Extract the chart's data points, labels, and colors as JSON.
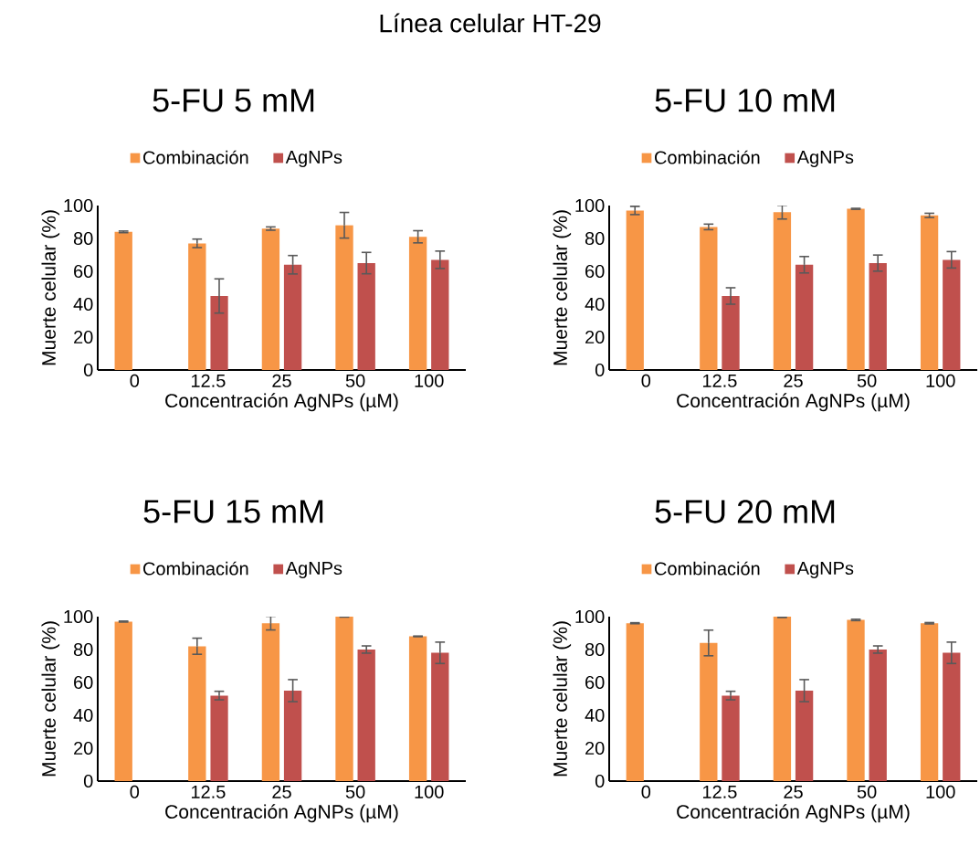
{
  "chart_data": [
    {
      "type": "bar",
      "title": "5-FU 5 mM",
      "annotations": [
        "Línea celular HT-29"
      ],
      "xlabel": "Concentración AgNPs (µM)",
      "ylabel": "Muerte celular (%)",
      "categories": [
        "0",
        "12.5",
        "25",
        "50",
        "100"
      ],
      "ylim": [
        0,
        100
      ],
      "yticks": [
        0,
        20,
        40,
        60,
        80,
        100
      ],
      "legend": "top",
      "grid": false,
      "series": [
        {
          "name": "Combinación",
          "color": "#f79646",
          "values": [
            84,
            77,
            86,
            88,
            81
          ],
          "errors": [
            0.5,
            2.6,
            1,
            7.8,
            3.7
          ]
        },
        {
          "name": "AgNPs",
          "color": "#c0504d",
          "values": [
            null,
            45,
            64,
            65,
            67
          ],
          "errors": [
            null,
            10.4,
            5.6,
            6.5,
            5.3
          ]
        }
      ]
    },
    {
      "type": "bar",
      "title": "5-FU 10 mM",
      "xlabel": "Concentración AgNPs (µM)",
      "ylabel": "Muerte celular (%)",
      "categories": [
        "0",
        "12.5",
        "25",
        "50",
        "100"
      ],
      "ylim": [
        0,
        100
      ],
      "yticks": [
        0,
        20,
        40,
        60,
        80,
        100
      ],
      "legend": "top",
      "grid": false,
      "series": [
        {
          "name": "Combinación",
          "color": "#f79646",
          "values": [
            97,
            87,
            96,
            98,
            94
          ],
          "errors": [
            2.5,
            1.7,
            4.2,
            0.3,
            1.3
          ]
        },
        {
          "name": "AgNPs",
          "color": "#c0504d",
          "values": [
            null,
            45,
            64,
            65,
            67
          ],
          "errors": [
            null,
            5,
            5,
            4.9,
            5
          ]
        }
      ]
    },
    {
      "type": "bar",
      "title": "5-FU 15 mM",
      "xlabel": "Concentración AgNPs (µM)",
      "ylabel": "Muerte celular (%)",
      "categories": [
        "0",
        "12.5",
        "25",
        "50",
        "100"
      ],
      "ylim": [
        0,
        100
      ],
      "yticks": [
        0,
        20,
        40,
        60,
        80,
        100
      ],
      "legend": "top",
      "grid": false,
      "series": [
        {
          "name": "Combinación",
          "color": "#f79646",
          "values": [
            97,
            82,
            96,
            100,
            88
          ],
          "errors": [
            0.3,
            4.9,
            4.1,
            0.2,
            0.2
          ]
        },
        {
          "name": "AgNPs",
          "color": "#c0504d",
          "values": [
            null,
            52,
            55,
            80,
            78
          ],
          "errors": [
            null,
            2.6,
            6.7,
            2.2,
            6.5
          ]
        }
      ]
    },
    {
      "type": "bar",
      "title": "5-FU 20 mM",
      "xlabel": "Concentración AgNPs (µM)",
      "ylabel": "Muerte celular (%)",
      "categories": [
        "0",
        "12.5",
        "25",
        "50",
        "100"
      ],
      "ylim": [
        0,
        100
      ],
      "yticks": [
        0,
        20,
        40,
        60,
        80,
        100
      ],
      "legend": "top",
      "grid": false,
      "series": [
        {
          "name": "Combinación",
          "color": "#f79646",
          "values": [
            96,
            84,
            100,
            98,
            96
          ],
          "errors": [
            0.3,
            7.8,
            0.5,
            0.4,
            0.4
          ]
        },
        {
          "name": "AgNPs",
          "color": "#c0504d",
          "values": [
            null,
            52,
            55,
            80,
            78
          ],
          "errors": [
            null,
            2.6,
            6.7,
            2.2,
            6.5
          ]
        }
      ]
    }
  ]
}
